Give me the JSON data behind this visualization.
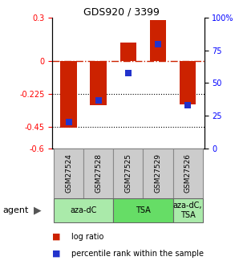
{
  "title": "GDS920 / 3399",
  "samples": [
    "GSM27524",
    "GSM27528",
    "GSM27525",
    "GSM27529",
    "GSM27526"
  ],
  "log_ratios": [
    -0.46,
    -0.3,
    0.13,
    0.285,
    -0.295
  ],
  "percentile_ranks": [
    20,
    37,
    58,
    80,
    33
  ],
  "ylim_left": [
    -0.6,
    0.3
  ],
  "ylim_right": [
    0,
    100
  ],
  "yticks_left": [
    0.3,
    0.0,
    -0.225,
    -0.45,
    -0.6
  ],
  "yticks_right": [
    100,
    75,
    50,
    25,
    0
  ],
  "hlines": [
    -0.225,
    -0.45
  ],
  "bar_color": "#cc2200",
  "dot_color": "#2233cc",
  "bar_width": 0.55,
  "dot_size": 40,
  "agent_groups": [
    {
      "label": "aza-dC",
      "i0": 0,
      "i1": 1,
      "color": "#aaeaaa"
    },
    {
      "label": "TSA",
      "i0": 2,
      "i1": 3,
      "color": "#66dd66"
    },
    {
      "label": "aza-dC,\nTSA",
      "i0": 4,
      "i1": 4,
      "color": "#aaeaaa"
    }
  ],
  "sample_bg": "#cccccc",
  "legend_log": "log ratio",
  "legend_pct": "percentile rank within the sample",
  "background_color": "#ffffff"
}
